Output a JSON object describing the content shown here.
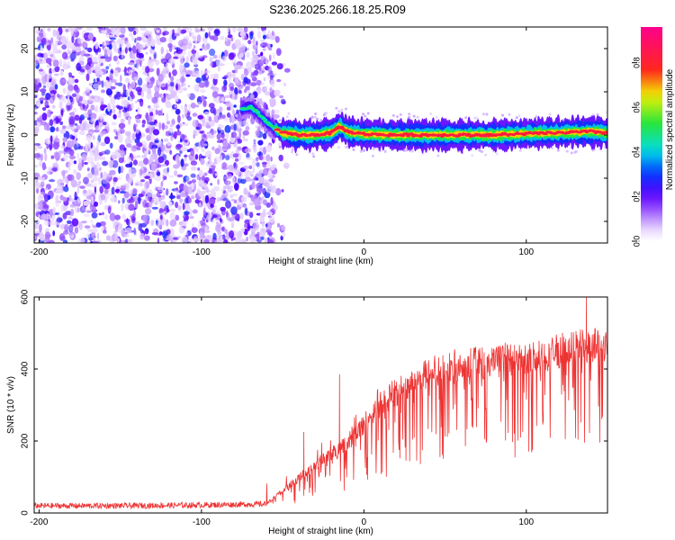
{
  "figure_title": "S236.2025.266.18.25.R09",
  "chart_data": [
    {
      "type": "heatmap",
      "title": "S236.2025.266.18.25.R09",
      "xlabel": "Height of straight line (km)",
      "ylabel": "Frequency (Hz)",
      "xlim": [
        -203,
        150
      ],
      "ylim": [
        -25,
        25
      ],
      "xticks": [
        -200,
        -100,
        0,
        100
      ],
      "yticks": [
        -20,
        -10,
        0,
        10,
        20
      ],
      "noise_region_x": [
        -203,
        -55
      ],
      "noise_amplitude_range": [
        0.05,
        0.3
      ],
      "ridge": {
        "description": "Signal ridge near 0 Hz after transition",
        "points_x": [
          -75,
          -70,
          -65,
          -60,
          -55,
          -50,
          -40,
          -30,
          -20,
          -15,
          -10,
          0,
          20,
          40,
          60,
          80,
          100,
          120,
          140,
          150
        ],
        "points_freq": [
          6,
          6.5,
          5,
          3,
          1.5,
          0.5,
          0,
          0,
          0.5,
          2,
          0.8,
          0.2,
          0,
          0,
          0,
          0,
          0.3,
          0.5,
          0.8,
          0.5
        ],
        "peak_amplitude": 0.95
      },
      "colorbar": {
        "label": "Normalized spectral amplitude",
        "range": [
          0,
          0.96
        ],
        "ticks": [
          0.0,
          0.2,
          0.4,
          0.6,
          0.8
        ],
        "tick_labels": [
          "0.0",
          "0.2",
          "0.4",
          "0.6",
          "0.8"
        ],
        "colormap": "hsv-like: white-violet-blue-cyan-green-yellow-red-magenta"
      }
    },
    {
      "type": "line",
      "xlabel": "Height of straight line (km)",
      "ylabel": "SNR (10 * v/v)",
      "xlim": [
        -203,
        150
      ],
      "ylim": [
        0,
        600
      ],
      "xticks": [
        -200,
        -100,
        0,
        100
      ],
      "yticks": [
        0,
        200,
        400,
        600
      ],
      "color": "#ee3333",
      "series": [
        {
          "name": "SNR",
          "envelope_x": [
            -203,
            -150,
            -100,
            -60,
            -50,
            -40,
            -30,
            -20,
            -10,
            0,
            10,
            20,
            30,
            40,
            50,
            60,
            80,
            100,
            120,
            140,
            150
          ],
          "envelope_y": [
            20,
            20,
            22,
            25,
            60,
            95,
            130,
            160,
            195,
            240,
            295,
            330,
            355,
            380,
            395,
            405,
            410,
            420,
            440,
            455,
            460
          ],
          "spikes": [
            {
              "x": -15,
              "y": 385
            },
            {
              "x": -37,
              "y": 225
            },
            {
              "x": 137,
              "y": 600
            }
          ]
        }
      ]
    }
  ]
}
